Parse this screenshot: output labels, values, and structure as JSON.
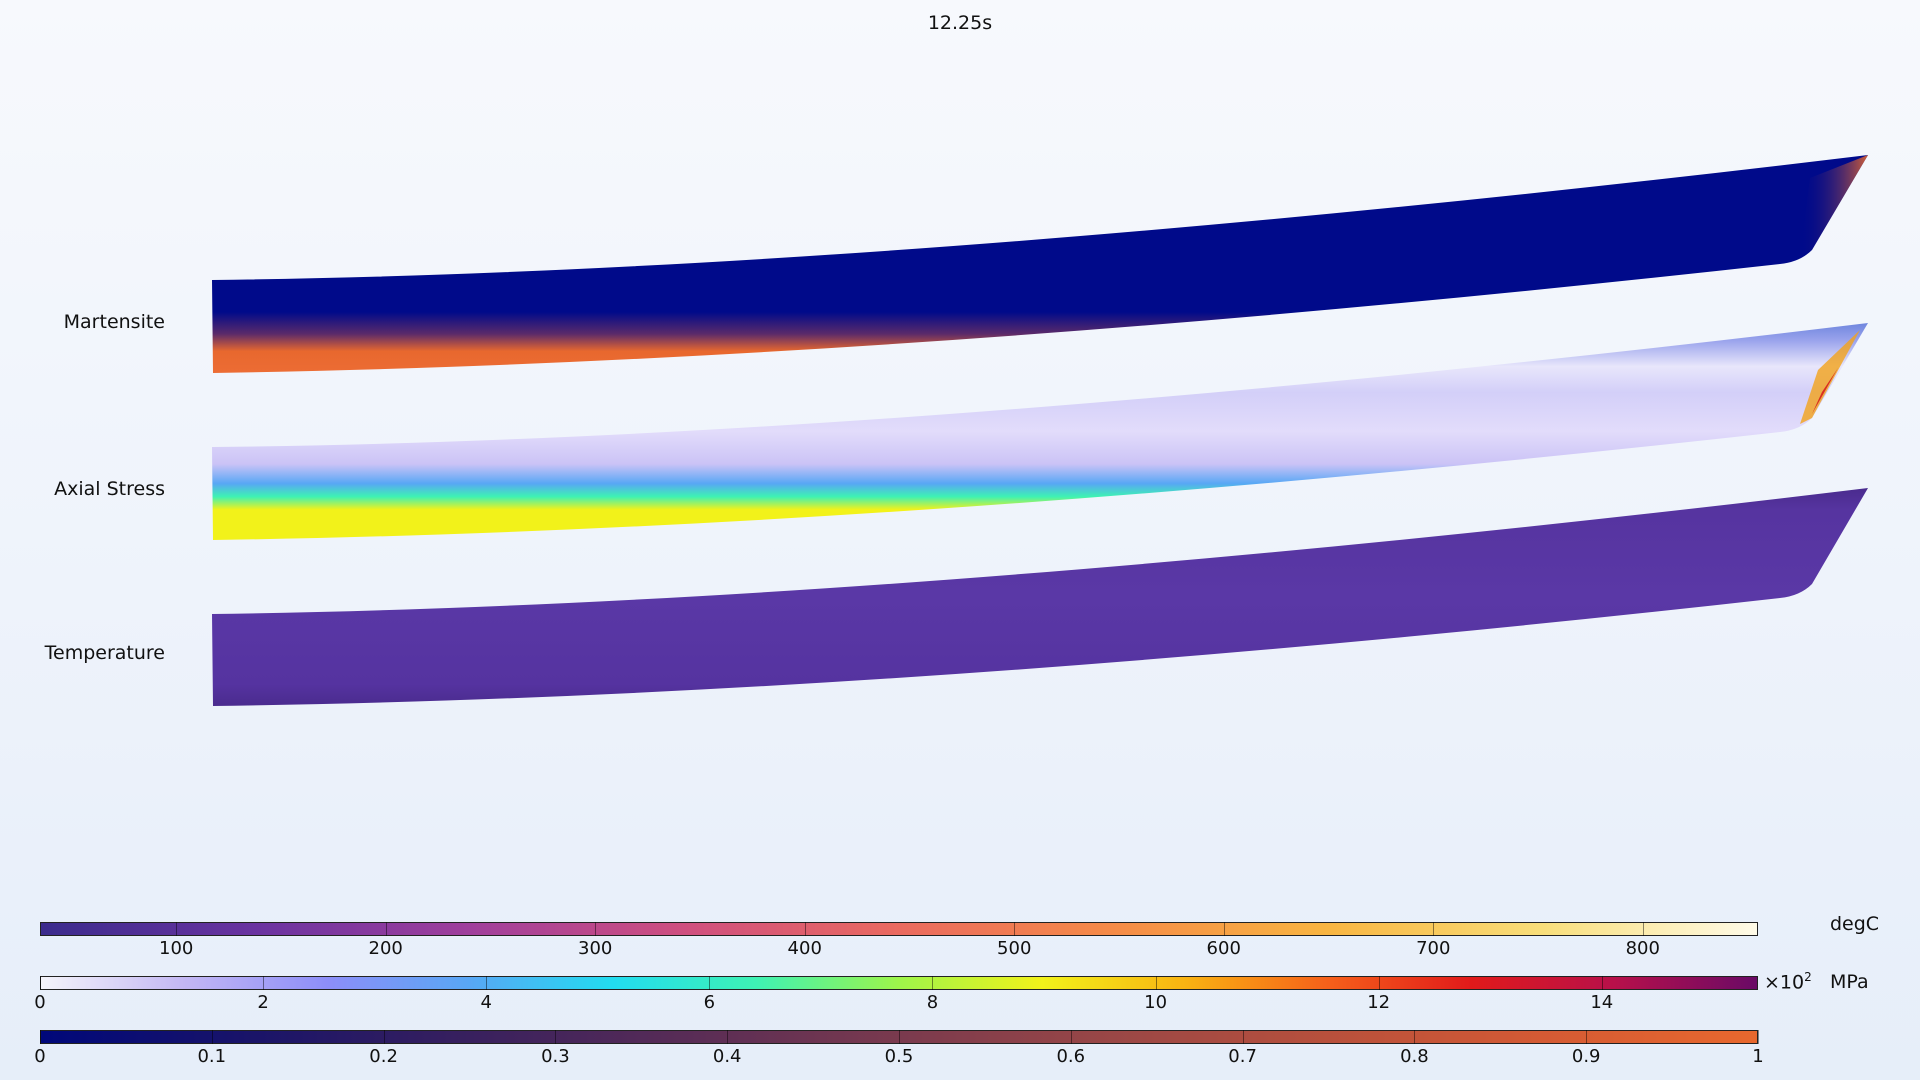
{
  "header": {
    "time": "12.25s"
  },
  "fields": [
    {
      "id": "martensite",
      "label": "Martensite"
    },
    {
      "id": "axial-stress",
      "label": "Axial Stress"
    },
    {
      "id": "temperature",
      "label": "Temperature"
    }
  ],
  "legends": [
    {
      "id": "temperature",
      "unit": "degC",
      "multiplier": "",
      "exponent": "",
      "range": [
        35,
        855
      ],
      "ticks": [
        "100",
        "200",
        "300",
        "400",
        "500",
        "600",
        "700",
        "800"
      ],
      "tick_values": [
        100,
        200,
        300,
        400,
        500,
        600,
        700,
        800
      ],
      "colors": [
        "#3b2b8c",
        "#6a33a0",
        "#a03f9c",
        "#cf4f7f",
        "#ea6a5f",
        "#f58b47",
        "#f8b541",
        "#f8de7a",
        "#fffbe8"
      ]
    },
    {
      "id": "stress",
      "unit": "MPa",
      "multiplier": "×10",
      "exponent": "2",
      "range": [
        0,
        15.4
      ],
      "ticks": [
        "0",
        "2",
        "4",
        "6",
        "8",
        "10",
        "12",
        "14"
      ],
      "tick_values": [
        0,
        2,
        4,
        6,
        8,
        10,
        12,
        14
      ],
      "colors": [
        "#f4f4fa",
        "#c3b7f4",
        "#8d8ef8",
        "#58a7f5",
        "#22dcf0",
        "#3ef2b4",
        "#9ef54a",
        "#f2f21a",
        "#f9b312",
        "#f6601a",
        "#e11a1a",
        "#b8104a",
        "#6a0a66"
      ]
    },
    {
      "id": "martensite",
      "unit": "",
      "multiplier": "",
      "exponent": "",
      "range": [
        0,
        1
      ],
      "ticks": [
        "0",
        "0.1",
        "0.2",
        "0.3",
        "0.4",
        "0.5",
        "0.6",
        "0.7",
        "0.8",
        "0.9",
        "1"
      ],
      "tick_values": [
        0,
        0.1,
        0.2,
        0.3,
        0.4,
        0.5,
        0.6,
        0.7,
        0.8,
        0.9,
        1
      ],
      "colors": [
        "#00087a",
        "#1a1468",
        "#38205e",
        "#582c56",
        "#7a3a4e",
        "#9a4746",
        "#b8503c",
        "#d45a34",
        "#e8682e"
      ]
    }
  ]
}
